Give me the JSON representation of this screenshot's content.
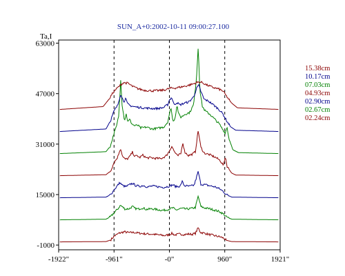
{
  "chart_data": {
    "type": "line",
    "title": "SUN_A+0:2002-10-11 09:00:27.100",
    "ylabel": "Ta,I",
    "xlabel": "",
    "xlim": [
      -1922,
      1921
    ],
    "ylim": [
      -2500,
      64000
    ],
    "y_ticks": [
      {
        "value": 63000,
        "label": "63000"
      },
      {
        "value": 47000,
        "label": "47000"
      },
      {
        "value": 31000,
        "label": "31000"
      },
      {
        "value": 15000,
        "label": "15000"
      },
      {
        "value": -1000,
        "label": "-1000"
      }
    ],
    "x_ticks": [
      {
        "value": -1922,
        "label": "-1922\""
      },
      {
        "value": -961,
        "label": "-961\""
      },
      {
        "value": 0,
        "label": "-0\""
      },
      {
        "value": 960,
        "label": "960\""
      },
      {
        "value": 1921,
        "label": "1921\""
      }
    ],
    "dashed_lines_x": [
      -961,
      0,
      960
    ],
    "grid": false,
    "legend_position": "right",
    "series": [
      {
        "name": "02.24cm",
        "color": "#8b0000",
        "baseline": 0,
        "shape": [
          [
            -1900,
            0
          ],
          [
            -1100,
            100
          ],
          [
            -1020,
            600
          ],
          [
            -961,
            1800
          ],
          [
            -870,
            2800
          ],
          [
            -780,
            3200
          ],
          [
            -700,
            2900
          ],
          [
            -620,
            3000
          ],
          [
            -540,
            2800
          ],
          [
            -450,
            2600
          ],
          [
            -360,
            2500
          ],
          [
            -270,
            2400
          ],
          [
            -180,
            2200
          ],
          [
            -80,
            2000
          ],
          [
            0,
            2300
          ],
          [
            40,
            2700
          ],
          [
            90,
            2200
          ],
          [
            180,
            2500
          ],
          [
            260,
            2300
          ],
          [
            330,
            2500
          ],
          [
            390,
            2400
          ],
          [
            450,
            2700
          ],
          [
            500,
            4500
          ],
          [
            540,
            3000
          ],
          [
            620,
            2700
          ],
          [
            700,
            2300
          ],
          [
            800,
            1900
          ],
          [
            880,
            1600
          ],
          [
            940,
            1200
          ],
          [
            990,
            500
          ],
          [
            1080,
            100
          ],
          [
            1900,
            0
          ]
        ]
      },
      {
        "name": "02.67cm",
        "color": "#008000",
        "baseline": 7000,
        "shape": [
          [
            -1900,
            0
          ],
          [
            -1100,
            200
          ],
          [
            -1020,
            1000
          ],
          [
            -961,
            2200
          ],
          [
            -890,
            3600
          ],
          [
            -850,
            4600
          ],
          [
            -810,
            4000
          ],
          [
            -770,
            3400
          ],
          [
            -700,
            3500
          ],
          [
            -640,
            4200
          ],
          [
            -600,
            3600
          ],
          [
            -540,
            3400
          ],
          [
            -470,
            3800
          ],
          [
            -400,
            3300
          ],
          [
            -300,
            3500
          ],
          [
            -200,
            3200
          ],
          [
            -100,
            3000
          ],
          [
            0,
            3400
          ],
          [
            60,
            3800
          ],
          [
            110,
            3100
          ],
          [
            200,
            3600
          ],
          [
            290,
            3400
          ],
          [
            380,
            3600
          ],
          [
            450,
            3900
          ],
          [
            500,
            7500
          ],
          [
            545,
            4200
          ],
          [
            600,
            3800
          ],
          [
            700,
            3500
          ],
          [
            800,
            3000
          ],
          [
            880,
            2500
          ],
          [
            940,
            1800
          ],
          [
            990,
            900
          ],
          [
            1080,
            200
          ],
          [
            1900,
            0
          ]
        ]
      },
      {
        "name": "02.90cm",
        "color": "#00008b",
        "baseline": 14000,
        "shape": [
          [
            -1900,
            0
          ],
          [
            -1100,
            200
          ],
          [
            -1020,
            1000
          ],
          [
            -961,
            2500
          ],
          [
            -900,
            3900
          ],
          [
            -860,
            4800
          ],
          [
            -815,
            3900
          ],
          [
            -760,
            3500
          ],
          [
            -700,
            4000
          ],
          [
            -640,
            4600
          ],
          [
            -590,
            3900
          ],
          [
            -520,
            3600
          ],
          [
            -450,
            3900
          ],
          [
            -380,
            3400
          ],
          [
            -300,
            3700
          ],
          [
            -200,
            3500
          ],
          [
            -100,
            3300
          ],
          [
            0,
            3700
          ],
          [
            60,
            4100
          ],
          [
            110,
            3500
          ],
          [
            190,
            3700
          ],
          [
            220,
            5200
          ],
          [
            260,
            3800
          ],
          [
            350,
            3600
          ],
          [
            430,
            4000
          ],
          [
            500,
            8300
          ],
          [
            545,
            4300
          ],
          [
            620,
            4100
          ],
          [
            700,
            3800
          ],
          [
            800,
            3400
          ],
          [
            880,
            2700
          ],
          [
            940,
            1900
          ],
          [
            990,
            1000
          ],
          [
            1080,
            200
          ],
          [
            1900,
            0
          ]
        ]
      },
      {
        "name": "04.93cm",
        "color": "#8b0000",
        "baseline": 21000,
        "shape": [
          [
            -1900,
            0
          ],
          [
            -1100,
            300
          ],
          [
            -1020,
            1500
          ],
          [
            -961,
            4200
          ],
          [
            -900,
            5800
          ],
          [
            -850,
            8700
          ],
          [
            -810,
            6000
          ],
          [
            -770,
            5200
          ],
          [
            -730,
            5300
          ],
          [
            -690,
            6000
          ],
          [
            -640,
            7500
          ],
          [
            -600,
            6000
          ],
          [
            -560,
            6400
          ],
          [
            -520,
            5700
          ],
          [
            -460,
            6500
          ],
          [
            -400,
            5600
          ],
          [
            -330,
            5700
          ],
          [
            -250,
            5500
          ],
          [
            -150,
            5400
          ],
          [
            -60,
            6200
          ],
          [
            0,
            7800
          ],
          [
            40,
            9400
          ],
          [
            80,
            7800
          ],
          [
            140,
            6200
          ],
          [
            200,
            7000
          ],
          [
            230,
            10700
          ],
          [
            265,
            7500
          ],
          [
            330,
            6400
          ],
          [
            400,
            6800
          ],
          [
            450,
            7600
          ],
          [
            500,
            14400
          ],
          [
            545,
            9000
          ],
          [
            600,
            7200
          ],
          [
            700,
            6600
          ],
          [
            800,
            5800
          ],
          [
            880,
            4800
          ],
          [
            940,
            3200
          ],
          [
            970,
            6200
          ],
          [
            1000,
            3000
          ],
          [
            1080,
            800
          ],
          [
            1150,
            200
          ],
          [
            1900,
            0
          ]
        ]
      },
      {
        "name": "07.03cm",
        "color": "#008000",
        "baseline": 28000,
        "shape": [
          [
            -1900,
            0
          ],
          [
            -1100,
            600
          ],
          [
            -1020,
            2500
          ],
          [
            -961,
            6500
          ],
          [
            -920,
            8500
          ],
          [
            -880,
            12000
          ],
          [
            -860,
            18000
          ],
          [
            -845,
            24000
          ],
          [
            -825,
            16000
          ],
          [
            -800,
            13000
          ],
          [
            -780,
            10500
          ],
          [
            -750,
            12500
          ],
          [
            -720,
            10000
          ],
          [
            -690,
            10800
          ],
          [
            -650,
            9400
          ],
          [
            -600,
            8800
          ],
          [
            -550,
            9000
          ],
          [
            -500,
            8100
          ],
          [
            -400,
            8400
          ],
          [
            -300,
            7800
          ],
          [
            -200,
            8000
          ],
          [
            -100,
            8400
          ],
          [
            -30,
            10000
          ],
          [
            0,
            12500
          ],
          [
            30,
            14500
          ],
          [
            60,
            10000
          ],
          [
            100,
            11500
          ],
          [
            130,
            15500
          ],
          [
            160,
            12500
          ],
          [
            200,
            11500
          ],
          [
            270,
            12500
          ],
          [
            350,
            13000
          ],
          [
            420,
            15500
          ],
          [
            470,
            24000
          ],
          [
            500,
            34000
          ],
          [
            530,
            20000
          ],
          [
            570,
            15000
          ],
          [
            620,
            13500
          ],
          [
            700,
            12500
          ],
          [
            780,
            11000
          ],
          [
            860,
            9500
          ],
          [
            930,
            7500
          ],
          [
            970,
            6500
          ],
          [
            1000,
            8500
          ],
          [
            1030,
            5000
          ],
          [
            1100,
            1200
          ],
          [
            1200,
            300
          ],
          [
            1900,
            0
          ]
        ]
      },
      {
        "name": "10.17cm",
        "color": "#00008b",
        "baseline": 35000,
        "shape": [
          [
            -1900,
            0
          ],
          [
            -1100,
            800
          ],
          [
            -1020,
            3500
          ],
          [
            -961,
            6500
          ],
          [
            -900,
            8200
          ],
          [
            -860,
            11000
          ],
          [
            -840,
            12000
          ],
          [
            -820,
            10500
          ],
          [
            -790,
            9500
          ],
          [
            -760,
            10500
          ],
          [
            -730,
            8800
          ],
          [
            -680,
            8200
          ],
          [
            -600,
            7800
          ],
          [
            -500,
            7600
          ],
          [
            -400,
            7400
          ],
          [
            -300,
            7300
          ],
          [
            -200,
            7300
          ],
          [
            -100,
            7600
          ],
          [
            -30,
            8500
          ],
          [
            0,
            10000
          ],
          [
            40,
            10800
          ],
          [
            80,
            8500
          ],
          [
            130,
            9200
          ],
          [
            180,
            8400
          ],
          [
            260,
            9000
          ],
          [
            340,
            9400
          ],
          [
            420,
            11000
          ],
          [
            480,
            14000
          ],
          [
            510,
            14600
          ],
          [
            550,
            12500
          ],
          [
            600,
            10200
          ],
          [
            680,
            9600
          ],
          [
            780,
            8200
          ],
          [
            860,
            7000
          ],
          [
            930,
            5500
          ],
          [
            990,
            3500
          ],
          [
            1060,
            1500
          ],
          [
            1150,
            400
          ],
          [
            1900,
            0
          ]
        ]
      },
      {
        "name": "15.38cm",
        "color": "#8b0000",
        "baseline": 42000,
        "shape": [
          [
            -1900,
            0
          ],
          [
            -1150,
            900
          ],
          [
            -1050,
            3200
          ],
          [
            -961,
            5800
          ],
          [
            -880,
            7200
          ],
          [
            -800,
            8500
          ],
          [
            -720,
            8300
          ],
          [
            -640,
            7300
          ],
          [
            -550,
            6600
          ],
          [
            -450,
            6100
          ],
          [
            -300,
            5900
          ],
          [
            -150,
            6000
          ],
          [
            -50,
            6300
          ],
          [
            0,
            6700
          ],
          [
            100,
            6800
          ],
          [
            200,
            7100
          ],
          [
            300,
            7500
          ],
          [
            400,
            8000
          ],
          [
            470,
            8500
          ],
          [
            520,
            8700
          ],
          [
            570,
            8500
          ],
          [
            650,
            7700
          ],
          [
            750,
            7000
          ],
          [
            850,
            6500
          ],
          [
            930,
            5800
          ],
          [
            990,
            4200
          ],
          [
            1080,
            2000
          ],
          [
            1180,
            500
          ],
          [
            1900,
            0
          ]
        ]
      }
    ]
  }
}
